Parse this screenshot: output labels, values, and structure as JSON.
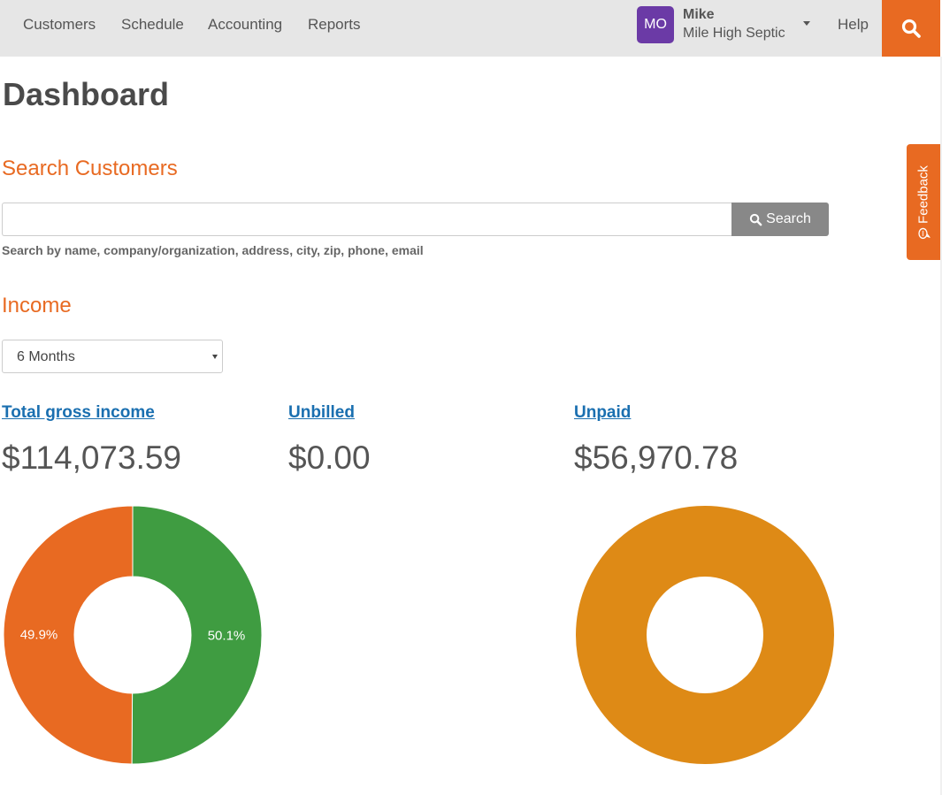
{
  "nav": {
    "items": [
      "Customers",
      "Schedule",
      "Accounting",
      "Reports"
    ],
    "help_label": "Help"
  },
  "user": {
    "initials": "MO",
    "name": "Mike",
    "company": "Mile High Septic"
  },
  "icons": {
    "top_search": "search-icon",
    "search_button": "search-icon",
    "user_menu": "caret-down-icon",
    "feedback": "chat-bubble-icon",
    "select": "caret-down-icon"
  },
  "colors": {
    "accent": "#e86a22",
    "avatar": "#6b3aa6",
    "link": "#1a6fb0",
    "green": "#3f9c41",
    "orange": "#e86a22",
    "amber": "#de8a16"
  },
  "feedback": {
    "label": "Feedback"
  },
  "page": {
    "title": "Dashboard"
  },
  "search": {
    "heading": "Search Customers",
    "value": "",
    "placeholder": "",
    "button_label": "Search",
    "help_text": "Search by name, company/organization, address, city, zip, phone, email"
  },
  "income": {
    "heading": "Income",
    "period": "6 Months",
    "metrics": [
      {
        "label": "Total gross income",
        "value": "$114,073.59"
      },
      {
        "label": "Unbilled",
        "value": "$0.00"
      },
      {
        "label": "Unpaid",
        "value": "$56,970.78"
      }
    ]
  },
  "chart_data": [
    {
      "type": "pie",
      "labels": [
        "",
        ""
      ],
      "values": [
        50.1,
        49.9
      ],
      "value_labels": [
        "50.1%",
        "49.9%"
      ],
      "colors": [
        "#3f9c41",
        "#e86a22"
      ]
    },
    {
      "type": "pie",
      "labels": [
        ""
      ],
      "values": [
        100
      ],
      "value_labels": [
        ""
      ],
      "colors": [
        "#de8a16"
      ]
    }
  ]
}
